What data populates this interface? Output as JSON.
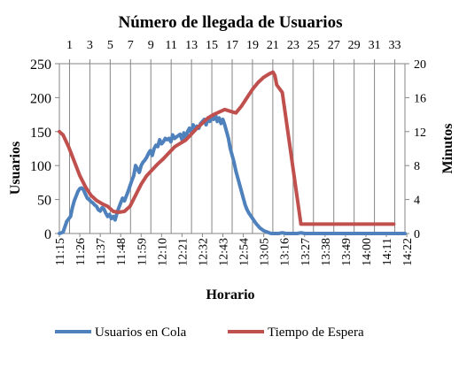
{
  "chart_data": {
    "type": "line",
    "title": "Número de llegada de Usuarios",
    "xlabel": "Horario",
    "ylabel_left": "Usuarios",
    "ylabel_right": "Minutos",
    "x_top_ticks": [
      "1",
      "3",
      "5",
      "7",
      "9",
      "11",
      "13",
      "15",
      "17",
      "19",
      "21",
      "23",
      "25",
      "27",
      "29",
      "31",
      "33"
    ],
    "top_axis_range": [
      0,
      34
    ],
    "y_left_ticks": [
      "0",
      "50",
      "100",
      "150",
      "200",
      "250"
    ],
    "y_left_lim": [
      0,
      250
    ],
    "y_right_ticks": [
      "0",
      "4",
      "8",
      "12",
      "16",
      "20"
    ],
    "y_right_lim": [
      0,
      20
    ],
    "x_bottom_ticks": [
      "11:15",
      "11:26",
      "11:37",
      "11:48",
      "11:59",
      "12:10",
      "12:21",
      "12:32",
      "12:43",
      "12:54",
      "13:05",
      "13:16",
      "13:27",
      "13:38",
      "13:49",
      "14:00",
      "14:11",
      "14:22"
    ],
    "x_range_minutes": [
      0,
      186
    ],
    "grid": "vertical lines at top-axis ticks",
    "legend_placement": "bottom",
    "series": [
      {
        "name": "Usuarios en Cola",
        "axis": "left",
        "color": "#4F81BD",
        "x_minutes": [
          0,
          2,
          3,
          4,
          6,
          7,
          8,
          9,
          10,
          11,
          12,
          13,
          14,
          15,
          16,
          17,
          18,
          19,
          20,
          21,
          22,
          23,
          24,
          25,
          26,
          27,
          28,
          29,
          30,
          31,
          32,
          33,
          34,
          35,
          36,
          37,
          38,
          39,
          40,
          41,
          42,
          43,
          44,
          45,
          46,
          47,
          48,
          49,
          50,
          51,
          52,
          53,
          54,
          55,
          56,
          57,
          58,
          59,
          60,
          61,
          62,
          63,
          64,
          65,
          66,
          67,
          68,
          69,
          70,
          71,
          72,
          73,
          74,
          75,
          76,
          77,
          78,
          79,
          80,
          81,
          82,
          83,
          84,
          85,
          86,
          87,
          88,
          89,
          90,
          91,
          92,
          93,
          94,
          95,
          96,
          97,
          98,
          99,
          100,
          101,
          102,
          103,
          104,
          105,
          106,
          108,
          110,
          112,
          114,
          116,
          118,
          120,
          122,
          124,
          126,
          128,
          130,
          132,
          135,
          140,
          150,
          160,
          170,
          186
        ],
        "values": [
          0,
          2,
          10,
          18,
          25,
          38,
          48,
          55,
          62,
          66,
          67,
          64,
          58,
          52,
          50,
          47,
          45,
          42,
          40,
          35,
          33,
          38,
          36,
          30,
          25,
          28,
          22,
          25,
          20,
          30,
          38,
          45,
          52,
          48,
          55,
          62,
          70,
          78,
          85,
          100,
          95,
          90,
          100,
          105,
          108,
          112,
          118,
          122,
          115,
          125,
          130,
          128,
          138,
          132,
          135,
          140,
          138,
          140,
          135,
          145,
          140,
          142,
          144,
          146,
          138,
          148,
          140,
          150,
          155,
          148,
          160,
          152,
          158,
          155,
          162,
          165,
          168,
          160,
          170,
          165,
          172,
          168,
          175,
          165,
          170,
          162,
          168,
          160,
          150,
          140,
          125,
          115,
          105,
          92,
          82,
          72,
          62,
          52,
          42,
          35,
          30,
          26,
          22,
          18,
          14,
          8,
          4,
          2,
          0,
          0,
          0,
          1,
          0,
          0,
          0,
          0,
          1,
          0,
          0,
          0,
          0,
          0,
          0,
          0
        ]
      },
      {
        "name": "Tiempo de Espera",
        "axis": "right",
        "color": "#C0504D",
        "x_minutes": [
          0,
          2,
          5,
          8,
          11,
          14,
          17,
          20,
          23,
          26,
          29,
          32,
          35,
          38,
          41,
          44,
          47,
          50,
          53,
          56,
          59,
          62,
          65,
          68,
          71,
          74,
          77,
          80,
          83,
          86,
          89,
          92,
          95,
          98,
          101,
          104,
          107,
          110,
          113,
          115,
          116,
          117,
          120,
          130,
          140,
          150,
          160,
          170,
          180
        ],
        "values": [
          12,
          11.6,
          10.2,
          8.5,
          6.8,
          5.5,
          4.5,
          3.9,
          3.5,
          3.2,
          2.6,
          2.5,
          2.6,
          3.2,
          4.5,
          5.8,
          6.8,
          7.5,
          8.2,
          8.8,
          9.5,
          10.2,
          10.6,
          11,
          11.7,
          12.4,
          13,
          13.6,
          14,
          14.3,
          14.6,
          14.4,
          14.2,
          15,
          16,
          17,
          17.8,
          18.4,
          18.8,
          19,
          18.6,
          17.5,
          16.6,
          1.1,
          1.1,
          1.1,
          1.1,
          1.1,
          1.1
        ]
      }
    ]
  }
}
